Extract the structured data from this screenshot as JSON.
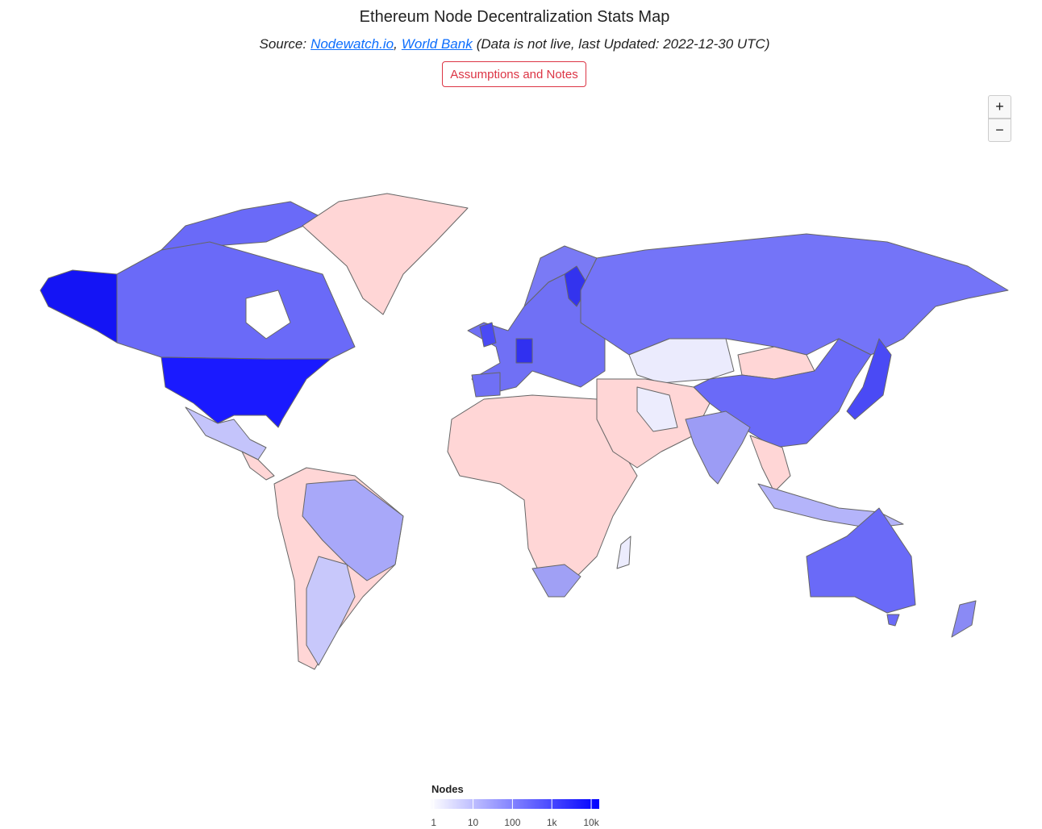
{
  "header": {
    "title": "Ethereum Node Decentralization Stats Map",
    "source_prefix": "Source:",
    "links": [
      "Nodewatch.io",
      "World Bank"
    ],
    "separator": ",",
    "note": "(Data is not live, last Updated: 2022-12-30 UTC)"
  },
  "button": "Assumptions and Notes",
  "zoom": [
    "+",
    "−"
  ],
  "colorbar": {
    "title": "Nodes",
    "log": true,
    "range": [
      0.8,
      16000
    ],
    "color_low": "#ffffff",
    "color_high": "#0000ff",
    "ticks": [
      1,
      10,
      100,
      {
        "value": 1000,
        "label": "1k"
      },
      {
        "value": 10000,
        "label": "10k"
      }
    ]
  }
}
